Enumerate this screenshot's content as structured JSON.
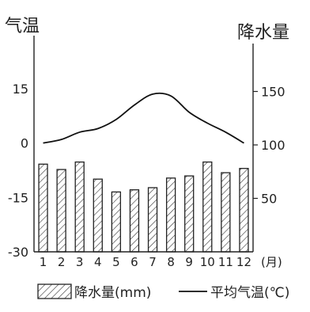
{
  "chart_data": {
    "type": "bar+line",
    "left_axis_label": "气温",
    "right_axis_label": "降水量",
    "x_unit": "(月)",
    "categories": [
      "1",
      "2",
      "3",
      "4",
      "5",
      "6",
      "7",
      "8",
      "9",
      "10",
      "11",
      "12"
    ],
    "precipitation_mm": [
      82,
      77,
      84,
      68,
      56,
      58,
      60,
      69,
      71,
      84,
      74,
      78
    ],
    "temperature_c": [
      0.0,
      1.0,
      3.0,
      4.0,
      6.5,
      10.5,
      13.5,
      13.0,
      8.5,
      5.5,
      3.0,
      0.0
    ],
    "left_ylim": [
      -30,
      25
    ],
    "left_ticks": [
      "15",
      "0",
      "-15",
      "-30"
    ],
    "right_ylim": [
      0,
      200
    ],
    "right_ticks": [
      "150",
      "100",
      "50"
    ],
    "series": [
      {
        "name": "降水量(mm)",
        "kind": "bar"
      },
      {
        "name": "平均气温(℃)",
        "kind": "line"
      }
    ]
  }
}
